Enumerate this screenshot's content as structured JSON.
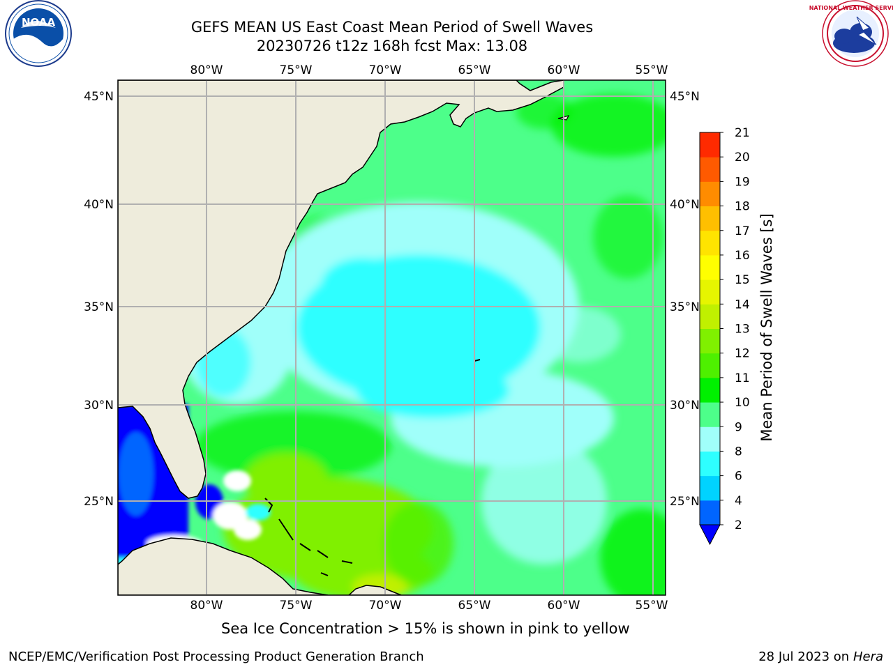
{
  "header": {
    "title_line1": "GEFS MEAN US East Coast Mean Period of Swell Waves",
    "title_line2": "20230726 t12z 168h fcst   Max: 13.08"
  },
  "logos": {
    "left": {
      "name": "noaa-logo",
      "text": "NOAA",
      "ring_text": "NATIONAL OCEANIC AND ATMOSPHERIC ADMINISTRATION · U.S. DEPARTMENT OF COMMERCE"
    },
    "right": {
      "name": "nws-logo",
      "ring_text": "NATIONAL WEATHER SERVICE"
    }
  },
  "map": {
    "lon_ticks": [
      "80°W",
      "75°W",
      "70°W",
      "65°W",
      "60°W",
      "55°W"
    ],
    "lat_ticks": [
      "45°N",
      "40°N",
      "35°N",
      "30°N",
      "25°N"
    ],
    "colors": {
      "land": "#eeecdc",
      "coast": "#000000",
      "grid": "#b0b0b0",
      "frame": "#000000"
    }
  },
  "colorbar": {
    "label": "Mean Period of Swell Waves [s]",
    "levels": [
      "2",
      "4",
      "6",
      "8",
      "9",
      "10",
      "11",
      "12",
      "13",
      "14",
      "15",
      "16",
      "17",
      "18",
      "19",
      "20",
      "21"
    ],
    "colors": [
      "#0065ff",
      "#00d3ff",
      "#2effff",
      "#a0fffa",
      "#4dff8a",
      "#00f000",
      "#4ef000",
      "#80f000",
      "#c0f000",
      "#e6f500",
      "#ffff00",
      "#ffe400",
      "#ffbf00",
      "#ff8c00",
      "#ff5a00",
      "#ff2a00"
    ],
    "under_color": "#0000ff"
  },
  "footer": {
    "note": "Sea Ice Concentration > 15% is shown in pink to yellow",
    "credit_left": "NCEP/EMC/Verification Post Processing Product Generation Branch",
    "credit_date": "28 Jul 2023 on",
    "credit_host": "Hera"
  }
}
